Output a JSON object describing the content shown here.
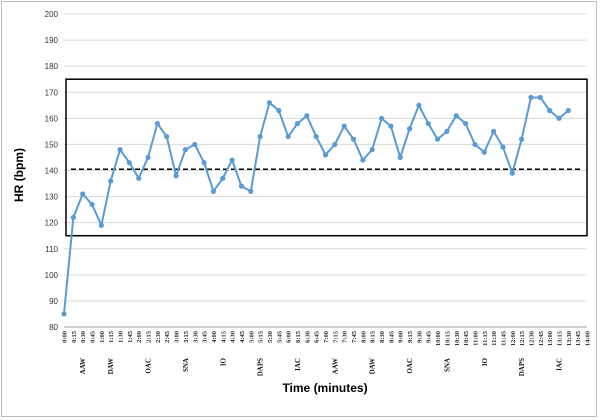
{
  "chart_data": {
    "type": "line",
    "xlabel": "Time (minutes)",
    "ylabel": "HR (bpm)",
    "ylim": [
      80,
      200
    ],
    "yticks": [
      80,
      90,
      100,
      110,
      120,
      130,
      140,
      150,
      160,
      170,
      180,
      190,
      200
    ],
    "grid": "horizontal",
    "legend": "none",
    "colors": {
      "line": "#5b9bd5",
      "reference": "#000000",
      "band": "#000000"
    },
    "reference_line": 140.5,
    "band": [
      115,
      175
    ],
    "categories": [
      "0:00",
      "0:15",
      "0:30",
      "0:45",
      "1:00",
      "1:15",
      "1:30",
      "1:45",
      "2:00",
      "2:15",
      "2:30",
      "2:45",
      "3:00",
      "3:15",
      "3:30",
      "3:45",
      "4:00",
      "4:15",
      "4:30",
      "4:45",
      "5:00",
      "5:15",
      "5:30",
      "5:45",
      "6:00",
      "6:15",
      "6:30",
      "6:45",
      "7:00",
      "7:15",
      "7:30",
      "7:45",
      "8:00",
      "8:15",
      "8:30",
      "8:45",
      "9:00",
      "9:15",
      "9:30",
      "9:45",
      "10:00",
      "10:15",
      "10:30",
      "10:45",
      "11:00",
      "11:15",
      "11:30",
      "11:45",
      "12:00",
      "12:15",
      "12:30",
      "12:45",
      "13:00",
      "13:15",
      "13:30",
      "13:45",
      "14:00"
    ],
    "series": [
      {
        "values": [
          85,
          122,
          131,
          127,
          119,
          136,
          148,
          143,
          137,
          145,
          158,
          153,
          138,
          148,
          150,
          143,
          132,
          137,
          144,
          134,
          132,
          153,
          166,
          163,
          153,
          158,
          161,
          153,
          146,
          150,
          157,
          152,
          144,
          148,
          160,
          157,
          145,
          156,
          165,
          158,
          152,
          155,
          161,
          158,
          150,
          147,
          155,
          149,
          139,
          152,
          168,
          168,
          163,
          160,
          163,
          null,
          null
        ]
      }
    ],
    "annotations": [
      {
        "at": "0:30",
        "label": "AAW"
      },
      {
        "at": "1:15",
        "label": "DAW"
      },
      {
        "at": "2:15",
        "label": "OAC"
      },
      {
        "at": "3:15",
        "label": "SNA"
      },
      {
        "at": "4:15",
        "label": "IO"
      },
      {
        "at": "5:15",
        "label": "DAPS"
      },
      {
        "at": "6:15",
        "label": "IAC"
      },
      {
        "at": "7:15",
        "label": "AAW"
      },
      {
        "at": "8:15",
        "label": "DAW"
      },
      {
        "at": "9:15",
        "label": "OAC"
      },
      {
        "at": "10:15",
        "label": "SNA"
      },
      {
        "at": "11:15",
        "label": "IO"
      },
      {
        "at": "12:15",
        "label": "DAPS"
      },
      {
        "at": "13:15",
        "label": "IAC"
      }
    ]
  }
}
